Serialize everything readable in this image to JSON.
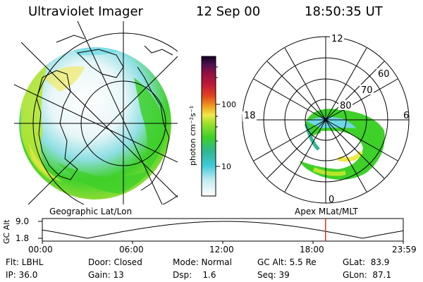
{
  "header": {
    "title": "Ultraviolet Imager",
    "date": "12 Sep 00",
    "time": "18:50:35 UT"
  },
  "colorbar": {
    "label": "photon cm⁻²s⁻¹",
    "ticks": [
      "100",
      "10"
    ],
    "scale": "log"
  },
  "panels": {
    "left_label": "Geographic Lat/Lon",
    "right_label": "Apex  MLat/MLT"
  },
  "polar_plot": {
    "mlt_labels": {
      "top": "12",
      "left": "18",
      "right": "6",
      "bottom": "0"
    },
    "lat_labels": [
      "60",
      "70",
      "80"
    ]
  },
  "altitude": {
    "axis_label": "GC Alt",
    "ymax": "9.0",
    "ymin": "1.8",
    "x_ticks": [
      "00:00",
      "06:00",
      "12:00",
      "18:00",
      "23:59"
    ],
    "marker_time": "18:50"
  },
  "info": {
    "row1": [
      {
        "label": "Flt: LBHL"
      },
      {
        "label": "Door: Closed"
      },
      {
        "label": "Mode: Normal"
      },
      {
        "label": "GC Alt: 5.5 Re"
      },
      {
        "label": "GLat:  83.9"
      }
    ],
    "row2": [
      {
        "label": "IP: 36.0"
      },
      {
        "label": "Gain: 13"
      },
      {
        "label": "Dsp:    1.6"
      },
      {
        "label": "Seq: 39"
      },
      {
        "label": "GLon:  87.1"
      }
    ]
  },
  "colors": {
    "green": "#3fd02a",
    "yellow_green": "#b8e62a",
    "yellow": "#f0e84a",
    "cyan": "#6fd8e6",
    "white": "#ffffff",
    "marker": "#e03020"
  }
}
